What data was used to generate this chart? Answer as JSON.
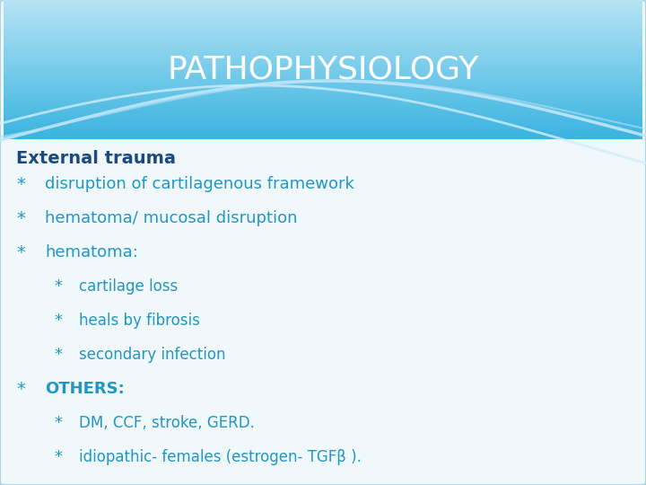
{
  "title": "PATHOPHYSIOLOGY",
  "title_color": "#ffffff",
  "title_fontsize": 26,
  "slide_bg_color": "#f0f8fc",
  "header_color_top": "#3ab4e0",
  "header_color_bottom": "#7dcfee",
  "text_color": "#2196c4",
  "bold_label": "External trauma",
  "bold_label_color": "#1a4a80",
  "bold_label_fontsize": 14,
  "items": [
    {
      "level": 1,
      "text": "disruption of cartilagenous framework",
      "bold": false
    },
    {
      "level": 1,
      "text": "hematoma/ mucosal disruption",
      "bold": false
    },
    {
      "level": 1,
      "text": "hematoma:",
      "bold": false
    },
    {
      "level": 2,
      "text": "cartilage loss",
      "bold": false
    },
    {
      "level": 2,
      "text": "heals by fibrosis",
      "bold": false
    },
    {
      "level": 2,
      "text": "secondary infection",
      "bold": false
    },
    {
      "level": 1,
      "text": "OTHERS:",
      "bold": true
    },
    {
      "level": 2,
      "text": "DM, CCF, stroke, GERD.",
      "bold": false
    },
    {
      "level": 2,
      "text": "idiopathic- females (estrogen- TGFβ ).",
      "bold": false
    }
  ],
  "item_fontsize": 13,
  "item_sub_fontsize": 12
}
